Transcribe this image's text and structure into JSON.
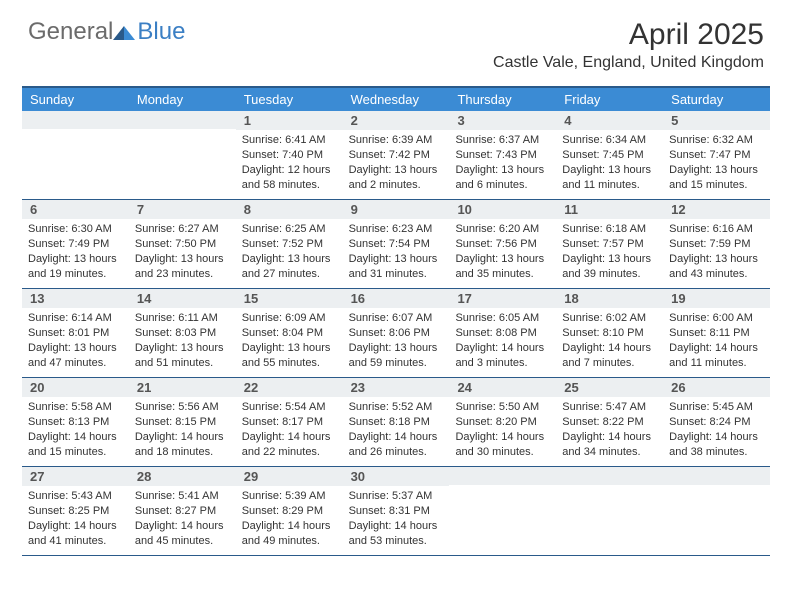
{
  "brand": {
    "part1": "General",
    "part2": "Blue"
  },
  "title": "April 2025",
  "location": "Castle Vale, England, United Kingdom",
  "colors": {
    "header_bg": "#3b8bd4",
    "border": "#2a5a8a",
    "daynum_bg": "#eceff1",
    "brand_gray": "#6b6b6b",
    "brand_blue": "#3b7fc4"
  },
  "weekdays": [
    "Sunday",
    "Monday",
    "Tuesday",
    "Wednesday",
    "Thursday",
    "Friday",
    "Saturday"
  ],
  "weeks": [
    [
      {
        "n": "",
        "sr": "",
        "ss": "",
        "dl": ""
      },
      {
        "n": "",
        "sr": "",
        "ss": "",
        "dl": ""
      },
      {
        "n": "1",
        "sr": "Sunrise: 6:41 AM",
        "ss": "Sunset: 7:40 PM",
        "dl": "Daylight: 12 hours and 58 minutes."
      },
      {
        "n": "2",
        "sr": "Sunrise: 6:39 AM",
        "ss": "Sunset: 7:42 PM",
        "dl": "Daylight: 13 hours and 2 minutes."
      },
      {
        "n": "3",
        "sr": "Sunrise: 6:37 AM",
        "ss": "Sunset: 7:43 PM",
        "dl": "Daylight: 13 hours and 6 minutes."
      },
      {
        "n": "4",
        "sr": "Sunrise: 6:34 AM",
        "ss": "Sunset: 7:45 PM",
        "dl": "Daylight: 13 hours and 11 minutes."
      },
      {
        "n": "5",
        "sr": "Sunrise: 6:32 AM",
        "ss": "Sunset: 7:47 PM",
        "dl": "Daylight: 13 hours and 15 minutes."
      }
    ],
    [
      {
        "n": "6",
        "sr": "Sunrise: 6:30 AM",
        "ss": "Sunset: 7:49 PM",
        "dl": "Daylight: 13 hours and 19 minutes."
      },
      {
        "n": "7",
        "sr": "Sunrise: 6:27 AM",
        "ss": "Sunset: 7:50 PM",
        "dl": "Daylight: 13 hours and 23 minutes."
      },
      {
        "n": "8",
        "sr": "Sunrise: 6:25 AM",
        "ss": "Sunset: 7:52 PM",
        "dl": "Daylight: 13 hours and 27 minutes."
      },
      {
        "n": "9",
        "sr": "Sunrise: 6:23 AM",
        "ss": "Sunset: 7:54 PM",
        "dl": "Daylight: 13 hours and 31 minutes."
      },
      {
        "n": "10",
        "sr": "Sunrise: 6:20 AM",
        "ss": "Sunset: 7:56 PM",
        "dl": "Daylight: 13 hours and 35 minutes."
      },
      {
        "n": "11",
        "sr": "Sunrise: 6:18 AM",
        "ss": "Sunset: 7:57 PM",
        "dl": "Daylight: 13 hours and 39 minutes."
      },
      {
        "n": "12",
        "sr": "Sunrise: 6:16 AM",
        "ss": "Sunset: 7:59 PM",
        "dl": "Daylight: 13 hours and 43 minutes."
      }
    ],
    [
      {
        "n": "13",
        "sr": "Sunrise: 6:14 AM",
        "ss": "Sunset: 8:01 PM",
        "dl": "Daylight: 13 hours and 47 minutes."
      },
      {
        "n": "14",
        "sr": "Sunrise: 6:11 AM",
        "ss": "Sunset: 8:03 PM",
        "dl": "Daylight: 13 hours and 51 minutes."
      },
      {
        "n": "15",
        "sr": "Sunrise: 6:09 AM",
        "ss": "Sunset: 8:04 PM",
        "dl": "Daylight: 13 hours and 55 minutes."
      },
      {
        "n": "16",
        "sr": "Sunrise: 6:07 AM",
        "ss": "Sunset: 8:06 PM",
        "dl": "Daylight: 13 hours and 59 minutes."
      },
      {
        "n": "17",
        "sr": "Sunrise: 6:05 AM",
        "ss": "Sunset: 8:08 PM",
        "dl": "Daylight: 14 hours and 3 minutes."
      },
      {
        "n": "18",
        "sr": "Sunrise: 6:02 AM",
        "ss": "Sunset: 8:10 PM",
        "dl": "Daylight: 14 hours and 7 minutes."
      },
      {
        "n": "19",
        "sr": "Sunrise: 6:00 AM",
        "ss": "Sunset: 8:11 PM",
        "dl": "Daylight: 14 hours and 11 minutes."
      }
    ],
    [
      {
        "n": "20",
        "sr": "Sunrise: 5:58 AM",
        "ss": "Sunset: 8:13 PM",
        "dl": "Daylight: 14 hours and 15 minutes."
      },
      {
        "n": "21",
        "sr": "Sunrise: 5:56 AM",
        "ss": "Sunset: 8:15 PM",
        "dl": "Daylight: 14 hours and 18 minutes."
      },
      {
        "n": "22",
        "sr": "Sunrise: 5:54 AM",
        "ss": "Sunset: 8:17 PM",
        "dl": "Daylight: 14 hours and 22 minutes."
      },
      {
        "n": "23",
        "sr": "Sunrise: 5:52 AM",
        "ss": "Sunset: 8:18 PM",
        "dl": "Daylight: 14 hours and 26 minutes."
      },
      {
        "n": "24",
        "sr": "Sunrise: 5:50 AM",
        "ss": "Sunset: 8:20 PM",
        "dl": "Daylight: 14 hours and 30 minutes."
      },
      {
        "n": "25",
        "sr": "Sunrise: 5:47 AM",
        "ss": "Sunset: 8:22 PM",
        "dl": "Daylight: 14 hours and 34 minutes."
      },
      {
        "n": "26",
        "sr": "Sunrise: 5:45 AM",
        "ss": "Sunset: 8:24 PM",
        "dl": "Daylight: 14 hours and 38 minutes."
      }
    ],
    [
      {
        "n": "27",
        "sr": "Sunrise: 5:43 AM",
        "ss": "Sunset: 8:25 PM",
        "dl": "Daylight: 14 hours and 41 minutes."
      },
      {
        "n": "28",
        "sr": "Sunrise: 5:41 AM",
        "ss": "Sunset: 8:27 PM",
        "dl": "Daylight: 14 hours and 45 minutes."
      },
      {
        "n": "29",
        "sr": "Sunrise: 5:39 AM",
        "ss": "Sunset: 8:29 PM",
        "dl": "Daylight: 14 hours and 49 minutes."
      },
      {
        "n": "30",
        "sr": "Sunrise: 5:37 AM",
        "ss": "Sunset: 8:31 PM",
        "dl": "Daylight: 14 hours and 53 minutes."
      },
      {
        "n": "",
        "sr": "",
        "ss": "",
        "dl": ""
      },
      {
        "n": "",
        "sr": "",
        "ss": "",
        "dl": ""
      },
      {
        "n": "",
        "sr": "",
        "ss": "",
        "dl": ""
      }
    ]
  ]
}
